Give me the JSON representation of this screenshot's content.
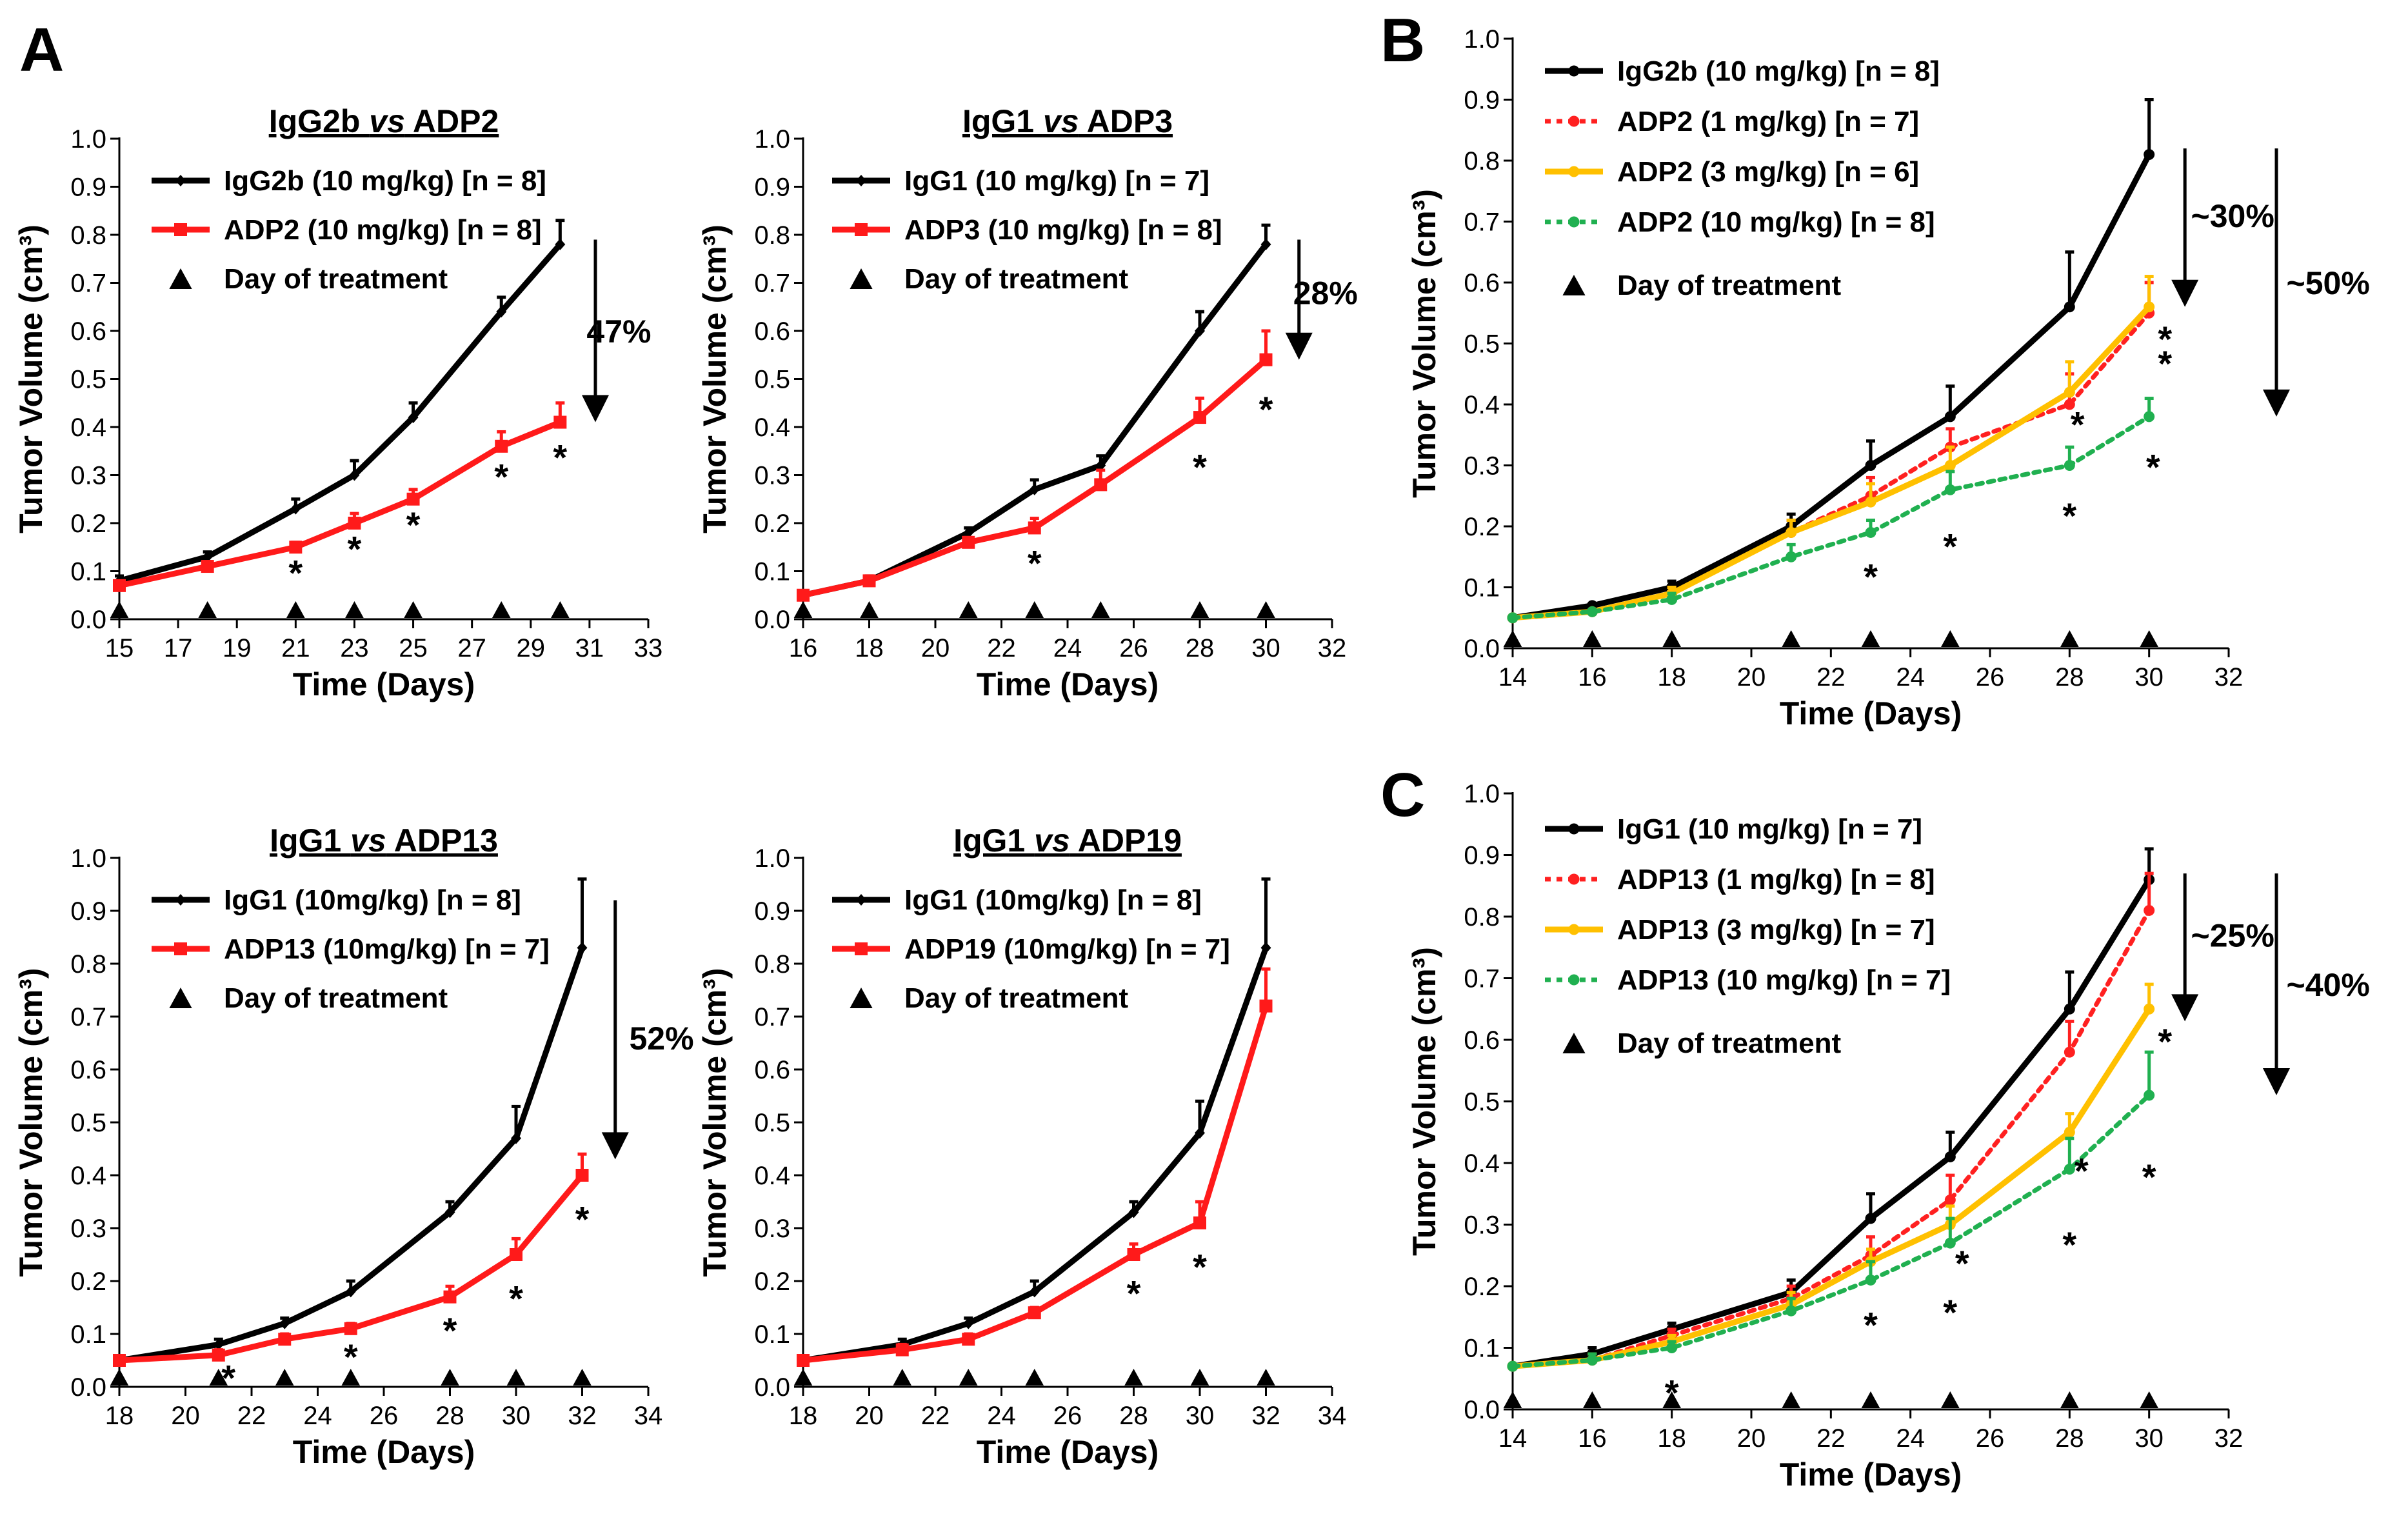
{
  "panel_labels": [
    "A",
    "B",
    "C"
  ],
  "marker_legend": "Day of treatment",
  "chart_data": [
    {
      "id": "a1",
      "type": "line",
      "title": {
        "parts": [
          {
            "t": "IgG2b "
          },
          {
            "t": "vs",
            "i": true
          },
          {
            "t": " ADP2"
          }
        ]
      },
      "xlabel": "Time (Days)",
      "ylabel": "Tumor Volume (cm³)",
      "xlim": [
        15,
        33
      ],
      "xticks": [
        15,
        17,
        19,
        21,
        23,
        25,
        27,
        29,
        31,
        33
      ],
      "ylim": [
        0,
        1
      ],
      "yticks": [
        0.0,
        0.1,
        0.2,
        0.3,
        0.4,
        0.5,
        0.6,
        0.7,
        0.8,
        0.9,
        1.0
      ],
      "series": [
        {
          "name": "IgG2b (10 mg/kg) [n = 8]",
          "color": "#000000",
          "dash": "solid",
          "marker": "diamond",
          "x": [
            15,
            18,
            21,
            23,
            25,
            28,
            30
          ],
          "values": [
            0.08,
            0.13,
            0.23,
            0.3,
            0.42,
            0.64,
            0.78
          ],
          "err": [
            0.01,
            0.01,
            0.02,
            0.03,
            0.03,
            0.03,
            0.05
          ]
        },
        {
          "name": "ADP2 (10 mg/kg) [n = 8]",
          "color": "#ff1a1a",
          "dash": "solid",
          "marker": "square",
          "x": [
            15,
            18,
            21,
            23,
            25,
            28,
            30
          ],
          "values": [
            0.07,
            0.11,
            0.15,
            0.2,
            0.25,
            0.36,
            0.41
          ],
          "err": [
            0.01,
            0.01,
            0.01,
            0.02,
            0.02,
            0.03,
            0.04
          ]
        }
      ],
      "treatment_days": [
        15,
        18,
        21,
        23,
        25,
        28,
        30
      ],
      "stars": [
        {
          "x": 21,
          "y": 0.1
        },
        {
          "x": 23,
          "y": 0.15
        },
        {
          "x": 25,
          "y": 0.2
        },
        {
          "x": 28,
          "y": 0.3
        },
        {
          "x": 30,
          "y": 0.34
        }
      ],
      "arrow": {
        "x": 31.2,
        "y_start": 0.79,
        "y_end": 0.41,
        "label": "47%",
        "label_x": 32.0,
        "label_y": 0.6
      }
    },
    {
      "id": "a2",
      "type": "line",
      "title": {
        "parts": [
          {
            "t": "IgG1 "
          },
          {
            "t": "vs",
            "i": true
          },
          {
            "t": " ADP3"
          }
        ]
      },
      "xlabel": "Time (Days)",
      "ylabel": "Tumor Volume (cm³)",
      "xlim": [
        16,
        32
      ],
      "xticks": [
        16,
        18,
        20,
        22,
        24,
        26,
        28,
        30,
        32
      ],
      "ylim": [
        0,
        1
      ],
      "yticks": [
        0.0,
        0.1,
        0.2,
        0.3,
        0.4,
        0.5,
        0.6,
        0.7,
        0.8,
        0.9,
        1.0
      ],
      "series": [
        {
          "name": "IgG1 (10 mg/kg) [n = 7]",
          "color": "#000000",
          "dash": "solid",
          "marker": "diamond",
          "x": [
            16,
            18,
            21,
            23,
            25,
            28,
            30
          ],
          "values": [
            0.05,
            0.08,
            0.18,
            0.27,
            0.32,
            0.6,
            0.78
          ],
          "err": [
            0.005,
            0.01,
            0.01,
            0.02,
            0.02,
            0.04,
            0.04
          ]
        },
        {
          "name": "ADP3 (10 mg/kg) [n = 8]",
          "color": "#ff1a1a",
          "dash": "solid",
          "marker": "square",
          "x": [
            16,
            18,
            21,
            23,
            25,
            28,
            30
          ],
          "values": [
            0.05,
            0.08,
            0.16,
            0.19,
            0.28,
            0.42,
            0.54
          ],
          "err": [
            0.005,
            0.01,
            0.01,
            0.02,
            0.03,
            0.04,
            0.06
          ]
        }
      ],
      "treatment_days": [
        16,
        18,
        21,
        23,
        25,
        28,
        30
      ],
      "stars": [
        {
          "x": 23,
          "y": 0.12
        },
        {
          "x": 28,
          "y": 0.32
        },
        {
          "x": 30,
          "y": 0.44
        }
      ],
      "arrow": {
        "x": 31.0,
        "y_start": 0.79,
        "y_end": 0.54,
        "label": "28%",
        "label_x": 31.8,
        "label_y": 0.68
      }
    },
    {
      "id": "a3",
      "type": "line",
      "title": {
        "parts": [
          {
            "t": "IgG1 "
          },
          {
            "t": "vs",
            "i": true
          },
          {
            "t": " ADP13"
          }
        ]
      },
      "xlabel": "Time (Days)",
      "ylabel": "Tumor Volume (cm³)",
      "xlim": [
        18,
        34
      ],
      "xticks": [
        18,
        20,
        22,
        24,
        26,
        28,
        30,
        32,
        34
      ],
      "ylim": [
        0,
        1
      ],
      "yticks": [
        0.0,
        0.1,
        0.2,
        0.3,
        0.4,
        0.5,
        0.6,
        0.7,
        0.8,
        0.9,
        1.0
      ],
      "series": [
        {
          "name": "IgG1 (10mg/kg) [n = 8]",
          "color": "#000000",
          "dash": "solid",
          "marker": "diamond",
          "x": [
            18,
            21,
            23,
            25,
            28,
            30,
            32
          ],
          "values": [
            0.05,
            0.08,
            0.12,
            0.18,
            0.33,
            0.47,
            0.83
          ],
          "err": [
            0.005,
            0.01,
            0.01,
            0.02,
            0.02,
            0.06,
            0.13
          ]
        },
        {
          "name": "ADP13 (10mg/kg) [n = 7]",
          "color": "#ff1a1a",
          "dash": "solid",
          "marker": "square",
          "x": [
            18,
            21,
            23,
            25,
            28,
            30,
            32
          ],
          "values": [
            0.05,
            0.06,
            0.09,
            0.11,
            0.17,
            0.25,
            0.4
          ],
          "err": [
            0.005,
            0.01,
            0.01,
            0.01,
            0.02,
            0.03,
            0.04
          ]
        }
      ],
      "treatment_days": [
        18,
        21,
        23,
        25,
        28,
        30,
        32
      ],
      "stars": [
        {
          "x": 21.3,
          "y": 0.02
        },
        {
          "x": 25,
          "y": 0.06
        },
        {
          "x": 28,
          "y": 0.11
        },
        {
          "x": 30,
          "y": 0.17
        },
        {
          "x": 32,
          "y": 0.32
        }
      ],
      "arrow": {
        "x": 33.0,
        "y_start": 0.92,
        "y_end": 0.43,
        "label": "52%",
        "label_x": 34.4,
        "label_y": 0.66
      }
    },
    {
      "id": "a4",
      "type": "line",
      "title": {
        "parts": [
          {
            "t": "IgG1 "
          },
          {
            "t": "vs",
            "i": true
          },
          {
            "t": " ADP19"
          }
        ]
      },
      "xlabel": "Time (Days)",
      "ylabel": "Tumor Volume (cm³)",
      "xlim": [
        18,
        34
      ],
      "xticks": [
        18,
        20,
        22,
        24,
        26,
        28,
        30,
        32,
        34
      ],
      "ylim": [
        0,
        1
      ],
      "yticks": [
        0.0,
        0.1,
        0.2,
        0.3,
        0.4,
        0.5,
        0.6,
        0.7,
        0.8,
        0.9,
        1.0
      ],
      "series": [
        {
          "name": "IgG1 (10mg/kg) [n = 8]",
          "color": "#000000",
          "dash": "solid",
          "marker": "diamond",
          "x": [
            18,
            21,
            23,
            25,
            28,
            30,
            32
          ],
          "values": [
            0.05,
            0.08,
            0.12,
            0.18,
            0.33,
            0.48,
            0.83
          ],
          "err": [
            0.005,
            0.01,
            0.01,
            0.02,
            0.02,
            0.06,
            0.13
          ]
        },
        {
          "name": "ADP19 (10mg/kg) [n = 7]",
          "color": "#ff1a1a",
          "dash": "solid",
          "marker": "square",
          "x": [
            18,
            21,
            23,
            25,
            28,
            30,
            32
          ],
          "values": [
            0.05,
            0.07,
            0.09,
            0.14,
            0.25,
            0.31,
            0.72
          ],
          "err": [
            0.005,
            0.01,
            0.01,
            0.01,
            0.02,
            0.04,
            0.07
          ]
        }
      ],
      "treatment_days": [
        18,
        21,
        23,
        25,
        28,
        30,
        32
      ],
      "stars": [
        {
          "x": 28,
          "y": 0.18
        },
        {
          "x": 30,
          "y": 0.23
        }
      ],
      "arrow": null
    },
    {
      "id": "b",
      "type": "line",
      "title": null,
      "xlabel": "Time (Days)",
      "ylabel": "Tumor Volume (cm³)",
      "xlim": [
        14,
        32
      ],
      "xticks": [
        14,
        16,
        18,
        20,
        22,
        24,
        26,
        28,
        30,
        32
      ],
      "ylim": [
        0,
        1
      ],
      "yticks": [
        0.0,
        0.1,
        0.2,
        0.3,
        0.4,
        0.5,
        0.6,
        0.7,
        0.8,
        0.9,
        1.0
      ],
      "series": [
        {
          "name": "IgG2b (10 mg/kg) [n = 8]",
          "color": "#000000",
          "dash": "solid",
          "marker": "circle",
          "x": [
            14,
            16,
            18,
            21,
            23,
            25,
            28,
            30
          ],
          "values": [
            0.05,
            0.07,
            0.1,
            0.2,
            0.3,
            0.38,
            0.56,
            0.81
          ],
          "err": [
            0.005,
            0.005,
            0.01,
            0.02,
            0.04,
            0.05,
            0.09,
            0.09
          ]
        },
        {
          "name": "ADP2 (1 mg/kg) [n = 7]",
          "color": "#ff2020",
          "dash": "dot",
          "marker": "circle",
          "x": [
            14,
            16,
            18,
            21,
            23,
            25,
            28,
            30
          ],
          "values": [
            0.05,
            0.06,
            0.09,
            0.19,
            0.25,
            0.33,
            0.4,
            0.55
          ],
          "err": [
            0.005,
            0.005,
            0.01,
            0.02,
            0.03,
            0.03,
            0.05,
            0.05
          ]
        },
        {
          "name": "ADP2 (3 mg/kg) [n = 6]",
          "color": "#ffc000",
          "dash": "solid",
          "marker": "circle",
          "x": [
            14,
            16,
            18,
            21,
            23,
            25,
            28,
            30
          ],
          "values": [
            0.05,
            0.06,
            0.09,
            0.19,
            0.24,
            0.3,
            0.42,
            0.56
          ],
          "err": [
            0.005,
            0.005,
            0.01,
            0.02,
            0.03,
            0.03,
            0.05,
            0.05
          ]
        },
        {
          "name": "ADP2 (10 mg/kg) [n = 8]",
          "color": "#20b050",
          "dash": "dot",
          "marker": "circle",
          "x": [
            14,
            16,
            18,
            21,
            23,
            25,
            28,
            30
          ],
          "values": [
            0.05,
            0.06,
            0.08,
            0.15,
            0.19,
            0.26,
            0.3,
            0.38
          ],
          "err": [
            0.005,
            0.005,
            0.01,
            0.02,
            0.02,
            0.03,
            0.03,
            0.03
          ]
        }
      ],
      "treatment_days": [
        14,
        16,
        18,
        21,
        23,
        25,
        28,
        30
      ],
      "stars": [
        {
          "x": 23,
          "y": 0.12
        },
        {
          "x": 25,
          "y": 0.17
        },
        {
          "x": 28.0,
          "y": 0.22
        },
        {
          "x": 28.2,
          "y": 0.37
        },
        {
          "x": 30.1,
          "y": 0.3
        },
        {
          "x": 30.4,
          "y": 0.51
        },
        {
          "x": 30.4,
          "y": 0.47
        }
      ],
      "arrows": [
        {
          "x": 30.9,
          "y_start": 0.82,
          "y_end": 0.56,
          "label": "~30%",
          "label_x": 32.1,
          "label_y": 0.71
        },
        {
          "x": 33.2,
          "y_start": 0.82,
          "y_end": 0.38,
          "label": "~50%",
          "label_x": 34.5,
          "label_y": 0.6
        }
      ]
    },
    {
      "id": "c",
      "type": "line",
      "title": null,
      "xlabel": "Time (Days)",
      "ylabel": "Tumor Volume (cm³)",
      "xlim": [
        14,
        32
      ],
      "xticks": [
        14,
        16,
        18,
        20,
        22,
        24,
        26,
        28,
        30,
        32
      ],
      "ylim": [
        0,
        1
      ],
      "yticks": [
        0.0,
        0.1,
        0.2,
        0.3,
        0.4,
        0.5,
        0.6,
        0.7,
        0.8,
        0.9,
        1.0
      ],
      "series": [
        {
          "name": "IgG1 (10 mg/kg) [n = 7]",
          "color": "#000000",
          "dash": "solid",
          "marker": "circle",
          "x": [
            14,
            16,
            18,
            21,
            23,
            25,
            28,
            30
          ],
          "values": [
            0.07,
            0.09,
            0.13,
            0.19,
            0.31,
            0.41,
            0.65,
            0.86
          ],
          "err": [
            0.005,
            0.01,
            0.01,
            0.02,
            0.04,
            0.04,
            0.06,
            0.05
          ]
        },
        {
          "name": "ADP13 (1 mg/kg) [n = 8]",
          "color": "#ff2020",
          "dash": "dot",
          "marker": "circle",
          "x": [
            14,
            16,
            18,
            21,
            23,
            25,
            28,
            30
          ],
          "values": [
            0.07,
            0.08,
            0.12,
            0.18,
            0.25,
            0.34,
            0.58,
            0.81
          ],
          "err": [
            0.005,
            0.01,
            0.01,
            0.02,
            0.03,
            0.04,
            0.05,
            0.06
          ]
        },
        {
          "name": "ADP13 (3 mg/kg) [n = 7]",
          "color": "#ffc000",
          "dash": "solid",
          "marker": "circle",
          "x": [
            14,
            16,
            18,
            21,
            23,
            25,
            28,
            30
          ],
          "values": [
            0.07,
            0.08,
            0.11,
            0.17,
            0.24,
            0.3,
            0.45,
            0.65
          ],
          "err": [
            0.005,
            0.01,
            0.01,
            0.02,
            0.02,
            0.03,
            0.03,
            0.04
          ]
        },
        {
          "name": "ADP13 (10 mg/kg) [n = 7]",
          "color": "#20b050",
          "dash": "dot",
          "marker": "circle",
          "x": [
            14,
            16,
            18,
            21,
            23,
            25,
            28,
            30
          ],
          "values": [
            0.07,
            0.08,
            0.1,
            0.16,
            0.21,
            0.27,
            0.39,
            0.51
          ],
          "err": [
            0.005,
            0.01,
            0.01,
            0.02,
            0.03,
            0.04,
            0.05,
            0.07
          ]
        }
      ],
      "treatment_days": [
        14,
        16,
        18,
        21,
        23,
        25,
        28,
        30
      ],
      "stars": [
        {
          "x": 18,
          "y": 0.03
        },
        {
          "x": 23,
          "y": 0.14
        },
        {
          "x": 25,
          "y": 0.16
        },
        {
          "x": 25.3,
          "y": 0.24
        },
        {
          "x": 28,
          "y": 0.27
        },
        {
          "x": 28.3,
          "y": 0.39
        },
        {
          "x": 30,
          "y": 0.38
        },
        {
          "x": 30.4,
          "y": 0.6
        }
      ],
      "arrows": [
        {
          "x": 30.9,
          "y_start": 0.87,
          "y_end": 0.63,
          "label": "~25%",
          "label_x": 32.1,
          "label_y": 0.77
        },
        {
          "x": 33.2,
          "y_start": 0.87,
          "y_end": 0.51,
          "label": "~40%",
          "label_x": 34.5,
          "label_y": 0.69
        }
      ]
    }
  ]
}
